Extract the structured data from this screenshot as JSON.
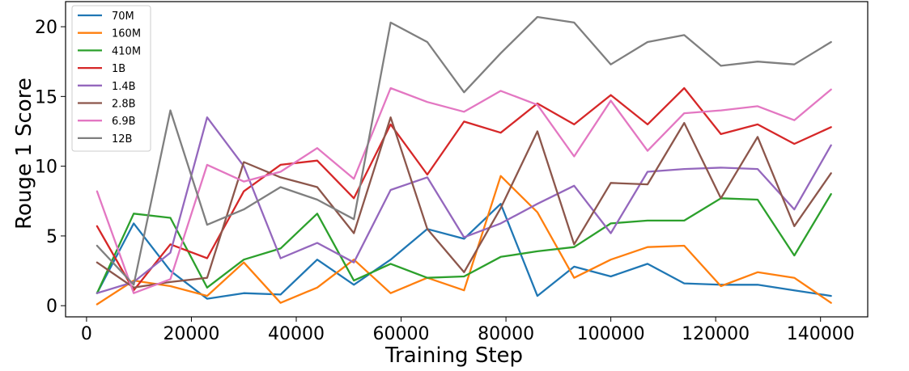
{
  "chart_data": {
    "type": "line",
    "xlabel": "Training Step",
    "ylabel": "Rouge 1 Score",
    "xlim": [
      -4000,
      149000
    ],
    "ylim": [
      -0.8,
      21.8
    ],
    "x_ticks": [
      0,
      20000,
      40000,
      60000,
      80000,
      100000,
      120000,
      140000
    ],
    "x_tick_labels": [
      "0",
      "20000",
      "40000",
      "60000",
      "80000",
      "100000",
      "120000",
      "140000"
    ],
    "y_ticks": [
      0,
      5,
      10,
      15,
      20
    ],
    "y_tick_labels": [
      "0",
      "5",
      "10",
      "15",
      "20"
    ],
    "grid": false,
    "legend_position": "top-left",
    "x": [
      2000,
      9000,
      16000,
      23000,
      30000,
      37000,
      44000,
      51000,
      58000,
      65000,
      72000,
      79000,
      86000,
      93000,
      100000,
      107000,
      114000,
      121000,
      128000,
      135000,
      142000
    ],
    "series": [
      {
        "name": "70M",
        "color": "#1f77b4",
        "values": [
          0.9,
          5.9,
          2.5,
          0.5,
          0.9,
          0.8,
          3.3,
          1.5,
          3.3,
          5.5,
          4.8,
          7.3,
          0.7,
          2.8,
          2.1,
          3.0,
          1.6,
          1.5,
          1.5,
          1.1,
          0.7
        ]
      },
      {
        "name": "160M",
        "color": "#ff7f0e",
        "values": [
          0.1,
          1.8,
          1.4,
          0.7,
          3.1,
          0.2,
          1.3,
          3.3,
          0.9,
          2.0,
          1.1,
          9.3,
          6.7,
          2.0,
          3.3,
          4.2,
          4.3,
          1.4,
          2.4,
          2.0,
          0.2
        ]
      },
      {
        "name": "410M",
        "color": "#2ca02c",
        "values": [
          0.9,
          6.6,
          6.3,
          1.3,
          3.3,
          4.1,
          6.6,
          1.8,
          3.0,
          2.0,
          2.1,
          3.5,
          3.9,
          4.2,
          5.9,
          6.1,
          6.1,
          7.7,
          7.6,
          3.6,
          8.0
        ]
      },
      {
        "name": "1B",
        "color": "#d62728",
        "values": [
          5.7,
          1.1,
          4.4,
          3.4,
          8.2,
          10.1,
          10.4,
          7.7,
          13.0,
          9.4,
          13.2,
          12.4,
          14.5,
          13.0,
          15.1,
          13.0,
          15.6,
          12.3,
          13.0,
          11.6,
          12.8
        ]
      },
      {
        "name": "1.4B",
        "color": "#9467bd",
        "values": [
          0.9,
          1.7,
          3.8,
          13.5,
          10.0,
          3.4,
          4.5,
          3.1,
          8.3,
          9.2,
          4.9,
          5.9,
          7.3,
          8.6,
          5.2,
          9.6,
          9.8,
          9.9,
          9.8,
          6.9,
          11.5
        ]
      },
      {
        "name": "2.8B",
        "color": "#8c564b",
        "values": [
          3.1,
          1.3,
          1.7,
          2.0,
          10.3,
          9.2,
          8.5,
          5.2,
          13.5,
          5.5,
          2.4,
          7.0,
          12.5,
          4.4,
          8.8,
          8.7,
          13.1,
          7.7,
          12.1,
          5.7,
          9.5
        ]
      },
      {
        "name": "6.9B",
        "color": "#e377c2",
        "values": [
          8.2,
          0.9,
          1.9,
          10.1,
          8.9,
          9.6,
          11.3,
          9.1,
          15.6,
          14.6,
          13.9,
          15.4,
          14.4,
          10.7,
          14.7,
          11.1,
          13.8,
          14.0,
          14.3,
          13.3,
          15.5
        ]
      },
      {
        "name": "12B",
        "color": "#7f7f7f",
        "values": [
          4.3,
          1.5,
          14.0,
          5.8,
          6.9,
          8.5,
          7.6,
          6.2,
          20.3,
          18.9,
          15.3,
          18.1,
          20.7,
          20.3,
          17.3,
          18.9,
          19.4,
          17.2,
          17.5,
          17.3,
          18.9
        ]
      }
    ]
  }
}
